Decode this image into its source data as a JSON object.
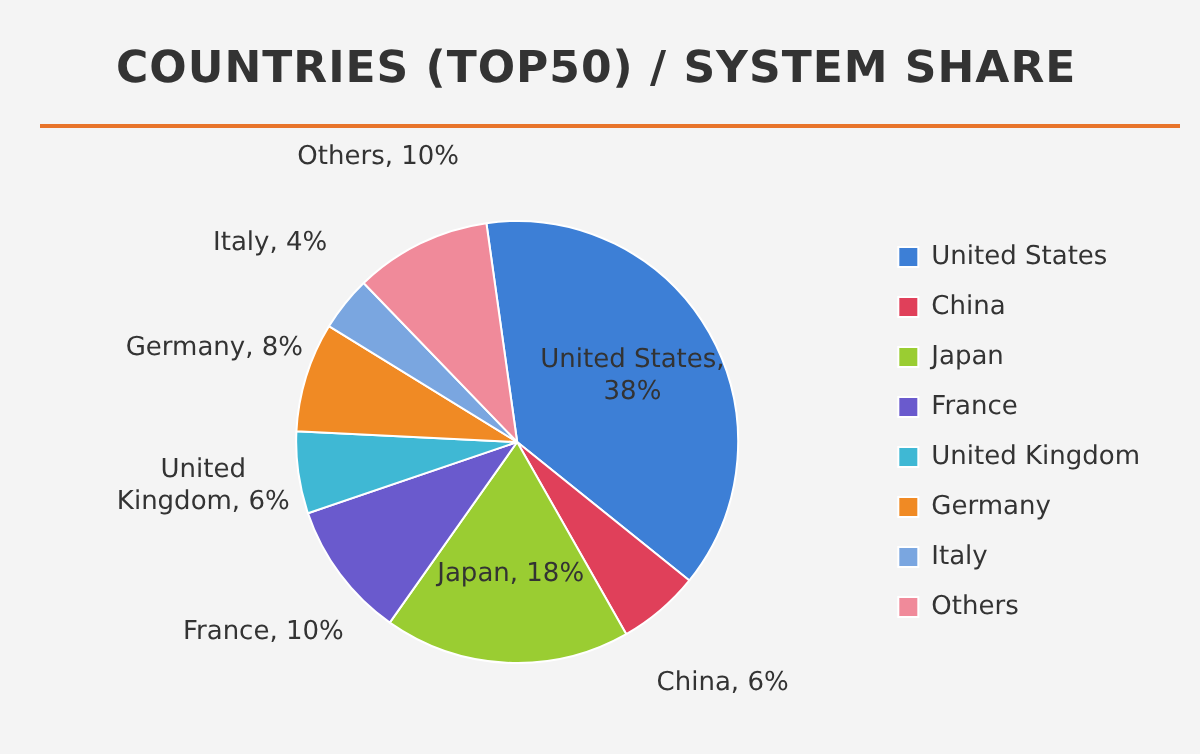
{
  "chart_data": {
    "type": "pie",
    "title": "COUNTRIES (TOP50) / SYSTEM SHARE",
    "categories": [
      "United States",
      "China",
      "Japan",
      "France",
      "United Kingdom",
      "Germany",
      "Italy",
      "Others"
    ],
    "values": [
      38,
      6,
      18,
      10,
      6,
      8,
      4,
      10
    ],
    "value_labels": [
      "United States, 38%",
      "China, 6%",
      "Japan, 18%",
      "France, 10%",
      "United Kingdom, 6%",
      "Germany, 8%",
      "Italy, 4%",
      "Others, 10%"
    ],
    "colors": [
      "#3d7fd6",
      "#e0405a",
      "#9acd32",
      "#6a5acd",
      "#3fb8d4",
      "#f08a24",
      "#7aa6e0",
      "#f08a9a"
    ],
    "legend": "right"
  }
}
